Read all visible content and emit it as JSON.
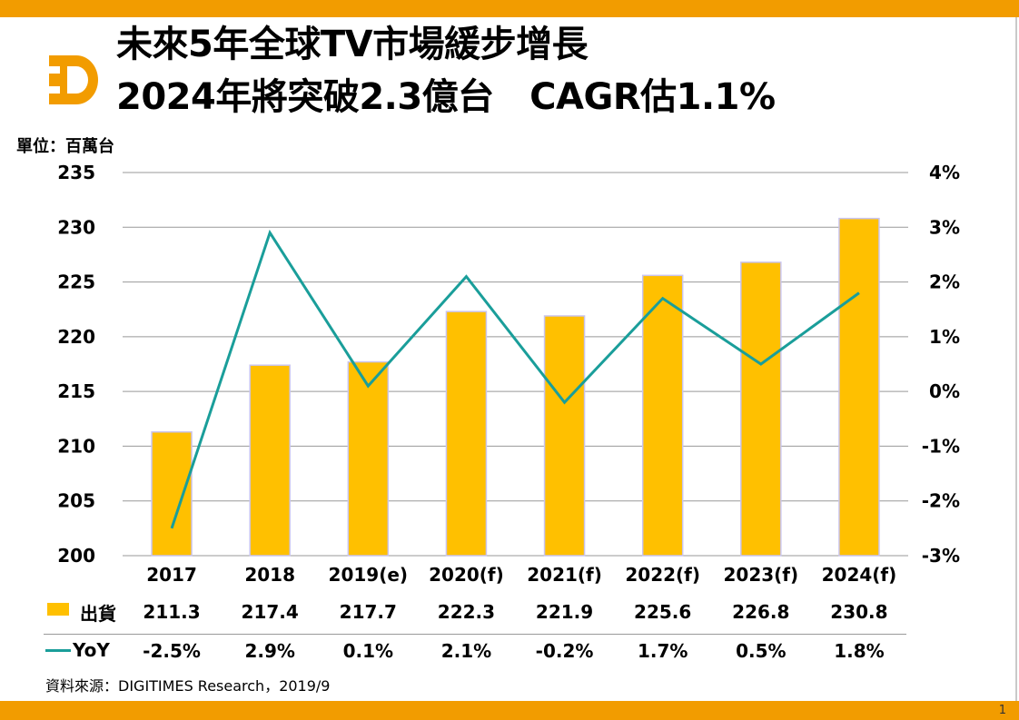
{
  "title_line1": "未來5年全球TV市場緩步增長",
  "title_line2": "2024年將突破2.3億台　CAGR估1.1%",
  "unit_label": "單位：百萬台",
  "source": "資料來源：DIGITIMES Research，2019/9",
  "page_number": "1",
  "colors": {
    "accent": "#f29c00",
    "bar": "#ffc000",
    "line": "#1a9e9a",
    "grid": "#999999"
  },
  "logo_icon": "digitimes-d-logo-icon",
  "chart_data": {
    "type": "bar",
    "categories": [
      "2017",
      "2018",
      "2019(e)",
      "2020(f)",
      "2021(f)",
      "2022(f)",
      "2023(f)",
      "2024(f)"
    ],
    "series": [
      {
        "name": "出貨",
        "type": "bar",
        "axis": "left",
        "values": [
          211.3,
          217.4,
          217.7,
          222.3,
          221.9,
          225.6,
          226.8,
          230.8
        ],
        "labels": [
          "211.3",
          "217.4",
          "217.7",
          "222.3",
          "221.9",
          "225.6",
          "226.8",
          "230.8"
        ]
      },
      {
        "name": "YoY",
        "type": "line",
        "axis": "right",
        "values": [
          -2.5,
          2.9,
          0.1,
          2.1,
          -0.2,
          1.7,
          0.5,
          1.8
        ],
        "labels": [
          "-2.5%",
          "2.9%",
          "0.1%",
          "2.1%",
          "-0.2%",
          "1.7%",
          "0.5%",
          "1.8%"
        ]
      }
    ],
    "y_left": {
      "ylim": [
        200,
        235
      ],
      "ticks": [
        "200",
        "205",
        "210",
        "215",
        "220",
        "225",
        "230",
        "235"
      ]
    },
    "y_right": {
      "ylim": [
        -3,
        4
      ],
      "ticks": [
        "-3%",
        "-2%",
        "-1%",
        "0%",
        "1%",
        "2%",
        "3%",
        "4%"
      ]
    },
    "grid": true,
    "legend": "bottom-left data table"
  }
}
